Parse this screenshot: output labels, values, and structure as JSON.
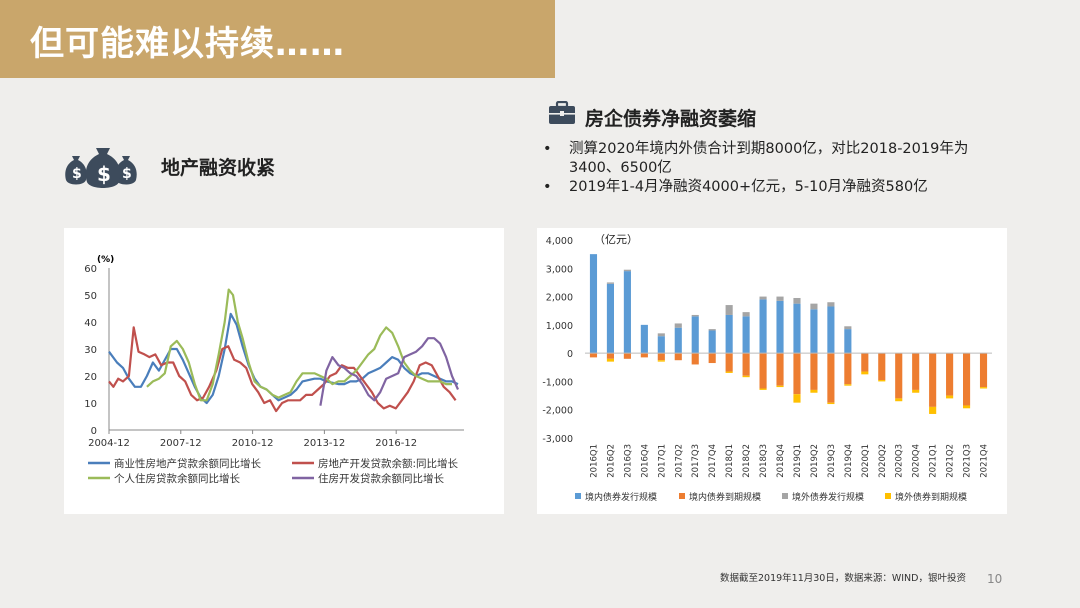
{
  "title": "但可能难以持续……",
  "left_section": {
    "heading": "地产融资收紧",
    "icon": "money-bags-icon"
  },
  "right_section": {
    "heading": "房企债券净融资萎缩",
    "icon": "briefcase-icon",
    "bullets": [
      "测算2020年境内外债合计到期8000亿，对比2018-2019年为3400、6500亿",
      "2019年1-4月净融资4000+亿元，5-10月净融资580亿"
    ]
  },
  "footnote": "数据截至2019年11月30日，数据来源：WIND，银叶投资",
  "page_number": "10",
  "chart_data": [
    {
      "type": "line",
      "ylabel": "(%)",
      "ylim": [
        0,
        60
      ],
      "yticks": [
        0,
        10,
        20,
        30,
        40,
        50,
        60
      ],
      "x_range": [
        2004.917,
        2019.75
      ],
      "xticks": [
        "2004-12",
        "2007-12",
        "2010-12",
        "2013-12",
        "2016-12"
      ],
      "legend_position": "bottom",
      "series": [
        {
          "name": "商业性房地产贷款余额同比增长",
          "color": "#4a7ebb",
          "points": [
            [
              2004.917,
              29
            ],
            [
              2005.25,
              25
            ],
            [
              2005.5,
              23
            ],
            [
              2005.75,
              19
            ],
            [
              2006.0,
              16
            ],
            [
              2006.25,
              16
            ],
            [
              2006.5,
              20
            ],
            [
              2006.75,
              25
            ],
            [
              2007.0,
              22
            ],
            [
              2007.5,
              30
            ],
            [
              2007.75,
              30
            ],
            [
              2008.0,
              26
            ],
            [
              2008.25,
              21
            ],
            [
              2008.5,
              16
            ],
            [
              2008.75,
              12
            ],
            [
              2009.0,
              10
            ],
            [
              2009.25,
              13
            ],
            [
              2009.5,
              20
            ],
            [
              2009.75,
              30
            ],
            [
              2010.0,
              43
            ],
            [
              2010.25,
              39
            ],
            [
              2010.5,
              31
            ],
            [
              2010.75,
              24
            ],
            [
              2011.0,
              19
            ],
            [
              2011.25,
              16
            ],
            [
              2011.5,
              15
            ],
            [
              2011.75,
              13
            ],
            [
              2012.0,
              11
            ],
            [
              2012.5,
              13
            ],
            [
              2012.75,
              15
            ],
            [
              2013.0,
              18
            ],
            [
              2013.5,
              19
            ],
            [
              2013.75,
              19
            ],
            [
              2014.0,
              18
            ],
            [
              2014.5,
              17
            ],
            [
              2014.75,
              17
            ],
            [
              2015.0,
              18
            ],
            [
              2015.25,
              18
            ],
            [
              2015.5,
              19
            ],
            [
              2015.75,
              21
            ],
            [
              2016.0,
              22
            ],
            [
              2016.25,
              23
            ],
            [
              2016.5,
              25
            ],
            [
              2016.75,
              27
            ],
            [
              2017.0,
              26
            ],
            [
              2017.25,
              23
            ],
            [
              2017.5,
              21
            ],
            [
              2017.75,
              20
            ],
            [
              2018.0,
              21
            ],
            [
              2018.25,
              21
            ],
            [
              2018.5,
              20
            ],
            [
              2018.75,
              19
            ],
            [
              2019.0,
              18
            ],
            [
              2019.25,
              18
            ],
            [
              2019.5,
              17
            ]
          ]
        },
        {
          "name": "房地产开发贷款余额:同比增长",
          "color": "#c0504d",
          "points": [
            [
              2004.917,
              18
            ],
            [
              2005.1,
              16
            ],
            [
              2005.3,
              19
            ],
            [
              2005.5,
              18
            ],
            [
              2005.75,
              20
            ],
            [
              2005.95,
              38
            ],
            [
              2006.15,
              29
            ],
            [
              2006.4,
              28
            ],
            [
              2006.6,
              27
            ],
            [
              2006.85,
              28
            ],
            [
              2007.1,
              24
            ],
            [
              2007.35,
              25
            ],
            [
              2007.6,
              25
            ],
            [
              2007.85,
              20
            ],
            [
              2008.1,
              18
            ],
            [
              2008.35,
              13
            ],
            [
              2008.6,
              11
            ],
            [
              2008.85,
              12
            ],
            [
              2009.1,
              16
            ],
            [
              2009.4,
              22
            ],
            [
              2009.65,
              30
            ],
            [
              2009.9,
              31
            ],
            [
              2010.15,
              26
            ],
            [
              2010.4,
              25
            ],
            [
              2010.65,
              23
            ],
            [
              2010.9,
              17
            ],
            [
              2011.15,
              14
            ],
            [
              2011.4,
              10
            ],
            [
              2011.65,
              11
            ],
            [
              2011.9,
              7
            ],
            [
              2012.15,
              10
            ],
            [
              2012.4,
              11
            ],
            [
              2012.65,
              11
            ],
            [
              2012.9,
              11
            ],
            [
              2013.15,
              13
            ],
            [
              2013.4,
              13
            ],
            [
              2013.65,
              15
            ],
            [
              2013.9,
              17
            ],
            [
              2014.15,
              20
            ],
            [
              2014.4,
              21
            ],
            [
              2014.65,
              24
            ],
            [
              2014.9,
              23
            ],
            [
              2015.15,
              23
            ],
            [
              2015.4,
              20
            ],
            [
              2015.65,
              17
            ],
            [
              2015.9,
              14
            ],
            [
              2016.15,
              10
            ],
            [
              2016.4,
              8
            ],
            [
              2016.65,
              9
            ],
            [
              2016.9,
              8
            ],
            [
              2017.15,
              11
            ],
            [
              2017.4,
              14
            ],
            [
              2017.65,
              18
            ],
            [
              2017.9,
              24
            ],
            [
              2018.15,
              25
            ],
            [
              2018.4,
              24
            ],
            [
              2018.65,
              20
            ],
            [
              2018.9,
              16
            ],
            [
              2019.15,
              14
            ],
            [
              2019.4,
              11
            ]
          ]
        },
        {
          "name": "个人住房贷款余额同比增长",
          "color": "#9bbb59",
          "points": [
            [
              2006.5,
              16
            ],
            [
              2006.75,
              18
            ],
            [
              2007.0,
              19
            ],
            [
              2007.25,
              21
            ],
            [
              2007.5,
              31
            ],
            [
              2007.75,
              33
            ],
            [
              2008.0,
              30
            ],
            [
              2008.25,
              25
            ],
            [
              2008.5,
              17
            ],
            [
              2008.75,
              11
            ],
            [
              2009.0,
              11
            ],
            [
              2009.25,
              17
            ],
            [
              2009.5,
              28
            ],
            [
              2009.75,
              40
            ],
            [
              2009.917,
              52
            ],
            [
              2010.1,
              50
            ],
            [
              2010.3,
              40
            ],
            [
              2010.5,
              34
            ],
            [
              2010.75,
              25
            ],
            [
              2011.0,
              18
            ],
            [
              2011.25,
              16
            ],
            [
              2011.5,
              15
            ],
            [
              2011.75,
              13
            ],
            [
              2012.0,
              12
            ],
            [
              2012.25,
              13
            ],
            [
              2012.5,
              14
            ],
            [
              2012.75,
              18
            ],
            [
              2013.0,
              21
            ],
            [
              2013.5,
              21
            ],
            [
              2013.75,
              20
            ],
            [
              2014.0,
              19
            ],
            [
              2014.25,
              17
            ],
            [
              2014.5,
              18
            ],
            [
              2014.75,
              18
            ],
            [
              2015.0,
              20
            ],
            [
              2015.25,
              22
            ],
            [
              2015.5,
              25
            ],
            [
              2015.75,
              28
            ],
            [
              2016.0,
              30
            ],
            [
              2016.25,
              35
            ],
            [
              2016.5,
              38
            ],
            [
              2016.75,
              36
            ],
            [
              2017.0,
              31
            ],
            [
              2017.25,
              25
            ],
            [
              2017.5,
              22
            ],
            [
              2017.75,
              20
            ],
            [
              2018.0,
              19
            ],
            [
              2018.25,
              18
            ],
            [
              2018.5,
              18
            ],
            [
              2018.75,
              18
            ],
            [
              2019.0,
              17
            ],
            [
              2019.25,
              17
            ]
          ]
        },
        {
          "name": "住房开发贷款余额同比增长",
          "color": "#8064a2",
          "points": [
            [
              2013.75,
              9
            ],
            [
              2014.0,
              22
            ],
            [
              2014.25,
              27
            ],
            [
              2014.5,
              24
            ],
            [
              2014.75,
              23
            ],
            [
              2015.0,
              21
            ],
            [
              2015.25,
              20
            ],
            [
              2015.5,
              17
            ],
            [
              2015.75,
              13
            ],
            [
              2016.0,
              11
            ],
            [
              2016.25,
              14
            ],
            [
              2016.5,
              19
            ],
            [
              2016.75,
              20
            ],
            [
              2017.0,
              21
            ],
            [
              2017.25,
              27
            ],
            [
              2017.5,
              28
            ],
            [
              2017.75,
              29
            ],
            [
              2018.0,
              31
            ],
            [
              2018.25,
              34
            ],
            [
              2018.5,
              34
            ],
            [
              2018.75,
              32
            ],
            [
              2019.0,
              27
            ],
            [
              2019.25,
              20
            ],
            [
              2019.5,
              15
            ]
          ]
        }
      ]
    },
    {
      "type": "bar",
      "stacked": true,
      "unit_label": "（亿元）",
      "ylim": [
        -3000,
        4000
      ],
      "yticks": [
        -3000,
        -2000,
        -1000,
        0,
        1000,
        2000,
        3000,
        4000
      ],
      "ytick_labels": [
        "-3,000",
        "-2,000",
        "-1,000",
        "0",
        "1,000",
        "2,000",
        "3,000",
        "4,000"
      ],
      "legend_position": "bottom",
      "categories": [
        "2016Q1",
        "2016Q2",
        "2016Q3",
        "2016Q4",
        "2017Q1",
        "2017Q2",
        "2017Q3",
        "2017Q4",
        "2018Q1",
        "2018Q2",
        "2018Q3",
        "2018Q4",
        "2019Q1",
        "2019Q2",
        "2019Q3",
        "2019Q4",
        "2020Q1",
        "2020Q2",
        "2020Q3",
        "2020Q4",
        "2021Q1",
        "2021Q2",
        "2021Q3",
        "2021Q4"
      ],
      "series": [
        {
          "name": "境内债券发行规模",
          "color": "#5b9bd5",
          "values": [
            3500,
            2450,
            2900,
            1000,
            600,
            900,
            1300,
            800,
            1350,
            1300,
            1900,
            1850,
            1750,
            1550,
            1650,
            850,
            0,
            0,
            0,
            0,
            0,
            0,
            0,
            0
          ]
        },
        {
          "name": "境内债券到期规模",
          "color": "#ed7d31",
          "values": [
            -150,
            -200,
            -200,
            -150,
            -250,
            -250,
            -400,
            -350,
            -650,
            -800,
            -1250,
            -1150,
            -1450,
            -1300,
            -1750,
            -1100,
            -650,
            -950,
            -1600,
            -1300,
            -1900,
            -1500,
            -1850,
            -1200
          ]
        },
        {
          "name": "境外债券发行规模",
          "color": "#a5a5a5",
          "values": [
            0,
            50,
            50,
            0,
            100,
            150,
            50,
            50,
            350,
            150,
            100,
            150,
            200,
            200,
            150,
            100,
            0,
            0,
            0,
            0,
            0,
            0,
            0,
            0
          ]
        },
        {
          "name": "境外债券到期规模",
          "color": "#ffc000",
          "values": [
            0,
            -100,
            0,
            0,
            -50,
            0,
            0,
            0,
            -50,
            -50,
            -50,
            -50,
            -300,
            -100,
            -50,
            -50,
            -100,
            -50,
            -100,
            -100,
            -250,
            -100,
            -100,
            -50
          ]
        }
      ]
    }
  ]
}
